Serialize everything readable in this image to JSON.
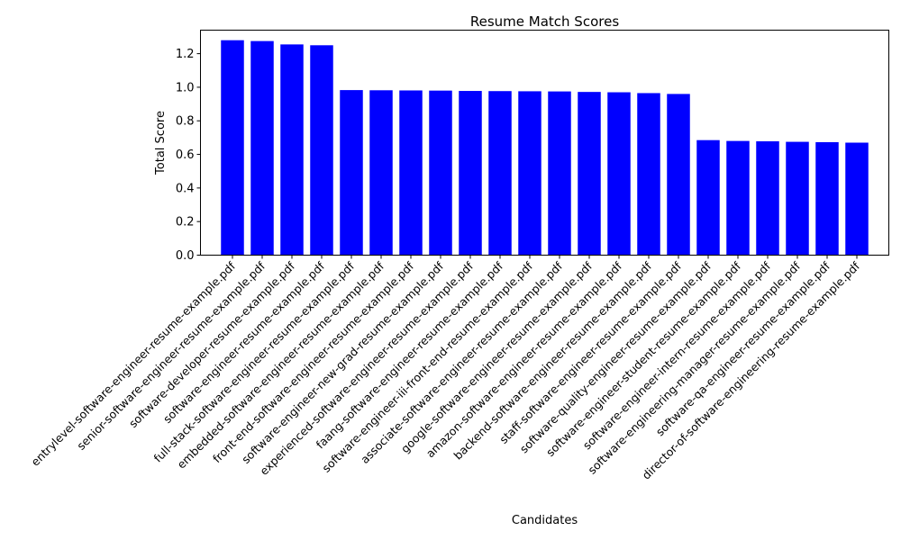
{
  "chart_data": {
    "type": "bar",
    "title": "Resume Match Scores",
    "xlabel": "Candidates",
    "ylabel": "Total Score",
    "ylim": [
      0,
      1.34
    ],
    "yticks": [
      0.0,
      0.2,
      0.4,
      0.6,
      0.8,
      1.0,
      1.2
    ],
    "ytick_labels": [
      "0.0",
      "0.2",
      "0.4",
      "0.6",
      "0.8",
      "1.0",
      "1.2"
    ],
    "grid": false,
    "bar_color": "#0000ff",
    "categories": [
      "entrylevel-software-engineer-resume-example.pdf",
      "senior-software-engineer-resume-example.pdf",
      "software-developer-resume-example.pdf",
      "software-engineer-resume-example.pdf",
      "full-stack-software-engineer-resume-example.pdf",
      "embedded-software-engineer-resume-example.pdf",
      "front-end-software-engineer-resume-example.pdf",
      "software-engineer-new-grad-resume-example.pdf",
      "experienced-software-engineer-resume-example.pdf",
      "faang-software-engineer-resume-example.pdf",
      "software-engineer-iii-front-end-resume-example.pdf",
      "associate-software-engineer-resume-example.pdf",
      "google-software-engineer-resume-example.pdf",
      "amazon-software-engineer-resume-example.pdf",
      "backend-software-engineer-resume-example.pdf",
      "staff-software-engineer-resume-example.pdf",
      "software-quality-engineer-resume-example.pdf",
      "software-engineer-student-resume-example.pdf",
      "software-engineer-intern-resume-example.pdf",
      "software-engineering-manager-resume-example.pdf",
      "software-qa-engineer-resume-example.pdf",
      "director-of-software-engineering-resume-example.pdf"
    ],
    "values": [
      1.28,
      1.275,
      1.255,
      1.25,
      0.983,
      0.982,
      0.981,
      0.98,
      0.978,
      0.977,
      0.976,
      0.975,
      0.972,
      0.97,
      0.965,
      0.96,
      0.685,
      0.68,
      0.678,
      0.675,
      0.673,
      0.67
    ]
  }
}
